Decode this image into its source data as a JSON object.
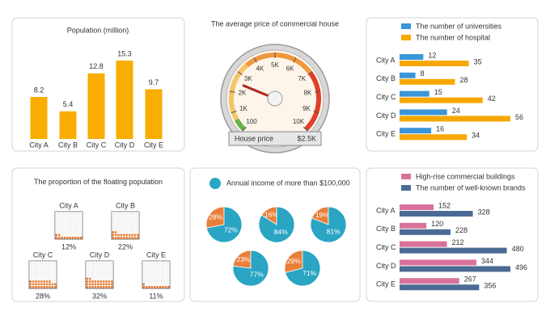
{
  "chart_data": [
    {
      "type": "bar",
      "title": "Population (million)",
      "categories": [
        "City A",
        "City B",
        "City C",
        "City D",
        "City E"
      ],
      "values": [
        8.2,
        5.4,
        12.8,
        15.3,
        9.7
      ],
      "color": "#f8ad00"
    },
    {
      "type": "gauge",
      "title": "The average price of commercial house",
      "label": "House price",
      "value": 2500,
      "value_label": "$2.5K",
      "ticks": [
        100,
        {
          "value": 1000,
          "label": "1K"
        },
        {
          "value": 2000,
          "label": "2K"
        },
        {
          "value": 3000,
          "label": "3K"
        },
        {
          "value": 4000,
          "label": "4K"
        },
        {
          "value": 5000,
          "label": "5K"
        },
        {
          "value": 6000,
          "label": "6K"
        },
        {
          "value": 7000,
          "label": "7K"
        },
        {
          "value": 8000,
          "label": "8K"
        },
        {
          "value": 9000,
          "label": "9K"
        },
        {
          "value": 10000,
          "label": "10K"
        }
      ]
    },
    {
      "type": "hbar",
      "categories": [
        "City A",
        "City B",
        "City C",
        "City D",
        "City E"
      ],
      "series": [
        {
          "name": "The number of universities",
          "color": "#3a96d8",
          "values": [
            12,
            8,
            15,
            24,
            16
          ]
        },
        {
          "name": "The number of hospital",
          "color": "#f7a800",
          "values": [
            35,
            28,
            42,
            56,
            34
          ]
        }
      ]
    },
    {
      "type": "waffle",
      "title": "The proportion of the floating population",
      "categories": [
        "City A",
        "City B",
        "City C",
        "City D",
        "City E"
      ],
      "values": [
        12,
        22,
        28,
        32,
        11
      ],
      "value_labels": [
        "12%",
        "22%",
        "28%",
        "32%",
        "11%"
      ],
      "color": "#e8803a"
    },
    {
      "type": "pies",
      "title": "Annual income of more than $100,000",
      "colors": [
        "#e8803a",
        "#2aa5c4"
      ],
      "pies": [
        {
          "values": [
            28,
            72
          ],
          "value_labels": [
            "28%",
            "72%"
          ]
        },
        {
          "values": [
            16,
            84
          ],
          "value_labels": [
            "16%",
            "84%"
          ]
        },
        {
          "values": [
            19,
            81
          ],
          "value_labels": [
            "19%",
            "81%"
          ]
        },
        {
          "values": [
            23,
            77
          ],
          "value_labels": [
            "23%",
            "77%"
          ]
        },
        {
          "values": [
            29,
            71
          ],
          "value_labels": [
            "29%",
            "71%"
          ]
        }
      ]
    },
    {
      "type": "hbar",
      "categories": [
        "City A",
        "City B",
        "City C",
        "City D",
        "City E"
      ],
      "series": [
        {
          "name": "High-rise commercial buildings",
          "color": "#d9729b",
          "values": [
            152,
            120,
            212,
            344,
            267
          ]
        },
        {
          "name": "The number of well-known brands",
          "color": "#4b6b95",
          "values": [
            328,
            228,
            480,
            496,
            356
          ]
        }
      ]
    }
  ]
}
